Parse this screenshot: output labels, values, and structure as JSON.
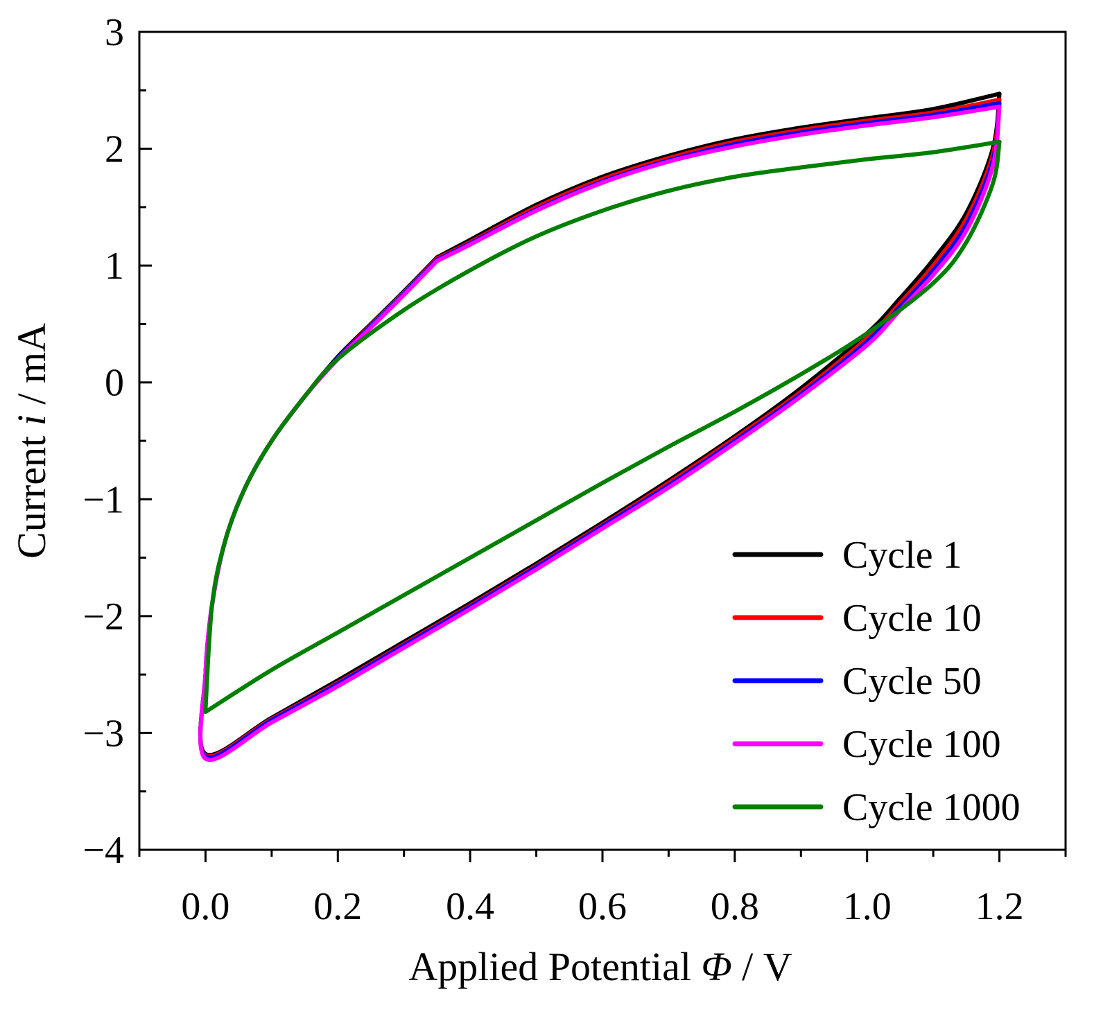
{
  "chart_data": {
    "type": "line",
    "title": "",
    "xlabel": {
      "prefix": "Applied Potential ",
      "symbol": "Φ",
      "suffix": " / V"
    },
    "ylabel": {
      "prefix": "Current ",
      "symbol": "i",
      "suffix": " / mA"
    },
    "xlim": [
      -0.1,
      1.3
    ],
    "ylim": [
      -4,
      3
    ],
    "xticks": [
      0.0,
      0.2,
      0.4,
      0.6,
      0.8,
      1.0,
      1.2
    ],
    "xtick_labels": [
      "0.0",
      "0.2",
      "0.4",
      "0.6",
      "0.8",
      "1.0",
      "1.2"
    ],
    "yticks": [
      -4,
      -3,
      -2,
      -1,
      0,
      1,
      2,
      3
    ],
    "ytick_labels": [
      "−4",
      "−3",
      "−2",
      "−1",
      "0",
      "1",
      "2",
      "3"
    ],
    "grid": false,
    "legend_position": "bottom-right",
    "series": [
      {
        "name": "Cycle 1",
        "color": "#000000",
        "anodic": [
          [
            0.35,
            1.07
          ],
          [
            0.4,
            1.22
          ],
          [
            0.5,
            1.52
          ],
          [
            0.6,
            1.76
          ],
          [
            0.7,
            1.94
          ],
          [
            0.8,
            2.08
          ],
          [
            0.9,
            2.18
          ],
          [
            1.0,
            2.26
          ],
          [
            1.1,
            2.34
          ],
          [
            1.2,
            2.47
          ]
        ],
        "cathodic": [
          [
            1.2,
            2.47
          ],
          [
            1.19,
            2.0
          ],
          [
            1.15,
            1.45
          ],
          [
            1.1,
            1.05
          ],
          [
            1.05,
            0.72
          ],
          [
            1.0,
            0.42
          ],
          [
            0.9,
            -0.05
          ],
          [
            0.8,
            -0.46
          ],
          [
            0.7,
            -0.84
          ],
          [
            0.6,
            -1.2
          ],
          [
            0.5,
            -1.55
          ],
          [
            0.4,
            -1.89
          ],
          [
            0.3,
            -2.22
          ],
          [
            0.2,
            -2.55
          ],
          [
            0.1,
            -2.87
          ],
          [
            0.0,
            -3.18
          ],
          [
            0.0,
            -2.5
          ],
          [
            0.01,
            -1.9
          ],
          [
            0.03,
            -1.35
          ],
          [
            0.06,
            -0.9
          ],
          [
            0.1,
            -0.5
          ],
          [
            0.15,
            -0.12
          ],
          [
            0.2,
            0.22
          ],
          [
            0.25,
            0.5
          ],
          [
            0.3,
            0.78
          ],
          [
            0.35,
            1.07
          ]
        ]
      },
      {
        "name": "Cycle 10",
        "color": "#ff0000",
        "anodic": [
          [
            0.35,
            1.06
          ],
          [
            0.4,
            1.2
          ],
          [
            0.5,
            1.5
          ],
          [
            0.6,
            1.74
          ],
          [
            0.7,
            1.92
          ],
          [
            0.8,
            2.06
          ],
          [
            0.9,
            2.16
          ],
          [
            1.0,
            2.24
          ],
          [
            1.1,
            2.31
          ],
          [
            1.2,
            2.42
          ]
        ],
        "cathodic": [
          [
            1.2,
            2.42
          ],
          [
            1.19,
            1.95
          ],
          [
            1.15,
            1.4
          ],
          [
            1.1,
            1.0
          ],
          [
            1.05,
            0.68
          ],
          [
            1.0,
            0.38
          ],
          [
            0.9,
            -0.08
          ],
          [
            0.8,
            -0.48
          ],
          [
            0.7,
            -0.86
          ],
          [
            0.6,
            -1.22
          ],
          [
            0.5,
            -1.57
          ],
          [
            0.4,
            -1.91
          ],
          [
            0.3,
            -2.24
          ],
          [
            0.2,
            -2.57
          ],
          [
            0.1,
            -2.88
          ],
          [
            0.0,
            -3.19
          ],
          [
            0.0,
            -2.5
          ],
          [
            0.01,
            -1.9
          ],
          [
            0.03,
            -1.35
          ],
          [
            0.06,
            -0.9
          ],
          [
            0.1,
            -0.5
          ],
          [
            0.15,
            -0.12
          ],
          [
            0.2,
            0.21
          ],
          [
            0.25,
            0.49
          ],
          [
            0.3,
            0.77
          ],
          [
            0.35,
            1.06
          ]
        ]
      },
      {
        "name": "Cycle 50",
        "color": "#0000ff",
        "anodic": [
          [
            0.35,
            1.05
          ],
          [
            0.4,
            1.19
          ],
          [
            0.5,
            1.48
          ],
          [
            0.6,
            1.72
          ],
          [
            0.7,
            1.9
          ],
          [
            0.8,
            2.04
          ],
          [
            0.9,
            2.14
          ],
          [
            1.0,
            2.22
          ],
          [
            1.1,
            2.29
          ],
          [
            1.2,
            2.39
          ]
        ],
        "cathodic": [
          [
            1.2,
            2.39
          ],
          [
            1.19,
            1.9
          ],
          [
            1.15,
            1.35
          ],
          [
            1.1,
            0.96
          ],
          [
            1.05,
            0.65
          ],
          [
            1.0,
            0.35
          ],
          [
            0.9,
            -0.1
          ],
          [
            0.8,
            -0.5
          ],
          [
            0.7,
            -0.88
          ],
          [
            0.6,
            -1.23
          ],
          [
            0.5,
            -1.58
          ],
          [
            0.4,
            -1.92
          ],
          [
            0.3,
            -2.25
          ],
          [
            0.2,
            -2.58
          ],
          [
            0.1,
            -2.89
          ],
          [
            0.0,
            -3.2
          ],
          [
            0.0,
            -2.5
          ],
          [
            0.01,
            -1.9
          ],
          [
            0.03,
            -1.35
          ],
          [
            0.06,
            -0.9
          ],
          [
            0.1,
            -0.5
          ],
          [
            0.15,
            -0.12
          ],
          [
            0.2,
            0.21
          ],
          [
            0.25,
            0.48
          ],
          [
            0.3,
            0.76
          ],
          [
            0.35,
            1.05
          ]
        ]
      },
      {
        "name": "Cycle 100",
        "color": "#ff00ff",
        "anodic": [
          [
            0.35,
            1.04
          ],
          [
            0.4,
            1.18
          ],
          [
            0.5,
            1.47
          ],
          [
            0.6,
            1.71
          ],
          [
            0.7,
            1.89
          ],
          [
            0.8,
            2.02
          ],
          [
            0.9,
            2.12
          ],
          [
            1.0,
            2.2
          ],
          [
            1.1,
            2.27
          ],
          [
            1.2,
            2.36
          ]
        ],
        "cathodic": [
          [
            1.2,
            2.36
          ],
          [
            1.19,
            1.85
          ],
          [
            1.15,
            1.3
          ],
          [
            1.1,
            0.92
          ],
          [
            1.05,
            0.62
          ],
          [
            1.0,
            0.32
          ],
          [
            0.9,
            -0.12
          ],
          [
            0.8,
            -0.52
          ],
          [
            0.7,
            -0.9
          ],
          [
            0.6,
            -1.25
          ],
          [
            0.5,
            -1.6
          ],
          [
            0.4,
            -1.94
          ],
          [
            0.3,
            -2.27
          ],
          [
            0.2,
            -2.6
          ],
          [
            0.1,
            -2.91
          ],
          [
            0.0,
            -3.22
          ],
          [
            0.0,
            -2.5
          ],
          [
            0.01,
            -1.9
          ],
          [
            0.03,
            -1.35
          ],
          [
            0.06,
            -0.9
          ],
          [
            0.1,
            -0.5
          ],
          [
            0.15,
            -0.12
          ],
          [
            0.2,
            0.2
          ],
          [
            0.25,
            0.47
          ],
          [
            0.3,
            0.75
          ],
          [
            0.35,
            1.04
          ]
        ]
      },
      {
        "name": "Cycle 1000",
        "color": "#007f00",
        "anodic": [
          [
            0.0,
            -2.8
          ],
          [
            0.01,
            -1.9
          ],
          [
            0.03,
            -1.35
          ],
          [
            0.06,
            -0.9
          ],
          [
            0.1,
            -0.5
          ],
          [
            0.15,
            -0.12
          ],
          [
            0.2,
            0.2
          ],
          [
            0.3,
            0.62
          ],
          [
            0.4,
            0.96
          ],
          [
            0.5,
            1.25
          ],
          [
            0.6,
            1.47
          ],
          [
            0.7,
            1.64
          ],
          [
            0.8,
            1.76
          ],
          [
            0.9,
            1.84
          ],
          [
            1.0,
            1.91
          ],
          [
            1.1,
            1.97
          ],
          [
            1.2,
            2.06
          ]
        ],
        "cathodic": [
          [
            1.2,
            2.06
          ],
          [
            1.19,
            1.7
          ],
          [
            1.15,
            1.2
          ],
          [
            1.1,
            0.85
          ],
          [
            1.0,
            0.42
          ],
          [
            0.9,
            0.07
          ],
          [
            0.8,
            -0.25
          ],
          [
            0.7,
            -0.55
          ],
          [
            0.6,
            -0.86
          ],
          [
            0.5,
            -1.18
          ],
          [
            0.4,
            -1.5
          ],
          [
            0.3,
            -1.82
          ],
          [
            0.2,
            -2.14
          ],
          [
            0.1,
            -2.46
          ],
          [
            0.0,
            -2.82
          ]
        ]
      }
    ]
  }
}
